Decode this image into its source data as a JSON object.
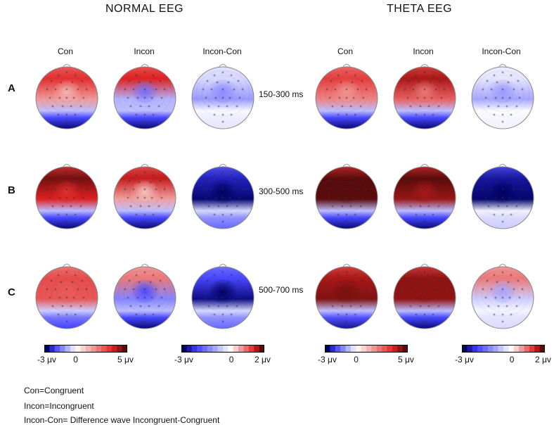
{
  "sections": {
    "normal": "NORMAL EEG",
    "theta": "THETA EEG"
  },
  "conditions": {
    "con": "Con",
    "incon": "Incon",
    "diff": "Incon-Con"
  },
  "rows": [
    {
      "label": "A",
      "window": "150-300 ms"
    },
    {
      "label": "B",
      "window": "300-500 ms"
    },
    {
      "label": "C",
      "window": "500-700 ms"
    }
  ],
  "maps": {
    "normal": [
      {
        "con": {
          "front": 0.7,
          "center": 0.25,
          "back": -1.0
        },
        "incon": {
          "front": 0.75,
          "center": -0.55,
          "back": -1.0
        },
        "diff": {
          "front": -0.15,
          "center": -0.45,
          "back": -0.1
        }
      },
      {
        "con": {
          "front": 0.95,
          "center": 0.7,
          "back": -1.0
        },
        "incon": {
          "front": 0.8,
          "center": 0.2,
          "back": -1.0
        },
        "diff": {
          "front": -0.85,
          "center": -1.0,
          "back": -0.6
        }
      },
      {
        "con": {
          "front": 0.6,
          "center": 0.55,
          "back": -0.75
        },
        "incon": {
          "front": 0.45,
          "center": -0.7,
          "back": -1.0
        },
        "diff": {
          "front": -0.7,
          "center": -1.0,
          "back": -0.6
        }
      }
    ],
    "theta": [
      {
        "con": {
          "front": 0.65,
          "center": 0.35,
          "back": -1.0
        },
        "incon": {
          "front": 0.85,
          "center": 0.45,
          "back": -1.0
        },
        "diff": {
          "front": -0.1,
          "center": -0.4,
          "back": -0.05
        }
      },
      {
        "con": {
          "front": 1.0,
          "center": 1.0,
          "back": -1.0
        },
        "incon": {
          "front": 1.0,
          "center": 0.85,
          "back": -1.0
        },
        "diff": {
          "front": -0.9,
          "center": -1.0,
          "back": -0.2
        }
      },
      {
        "con": {
          "front": 0.85,
          "center": 0.95,
          "back": -0.95
        },
        "incon": {
          "front": 0.9,
          "center": 0.9,
          "back": -1.0
        },
        "diff": {
          "front": 0.45,
          "center": -0.35,
          "back": -0.15
        }
      }
    ]
  },
  "colorbars": [
    {
      "min_label": "-3 μv",
      "zero_label": "0",
      "max_label": "5 μv",
      "min": -3,
      "max": 5
    },
    {
      "min_label": "-3 μv",
      "zero_label": "0",
      "max_label": "2 μv",
      "min": -3,
      "max": 2
    },
    {
      "min_label": "-3 μv",
      "zero_label": "0",
      "max_label": "5 μv",
      "min": -3,
      "max": 5
    },
    {
      "min_label": "-3 μv",
      "zero_label": "0",
      "max_label": "2 μv",
      "min": -3,
      "max": 2
    }
  ],
  "legend": [
    "Con=Congruent",
    "Incon=Incongruent",
    "Incon-Con= Difference wave Incongruent-Congruent"
  ],
  "colors": {
    "positive": "#d7191c",
    "negative": "#0000b4",
    "neutral": "#ffffff",
    "outline": "#888888"
  }
}
